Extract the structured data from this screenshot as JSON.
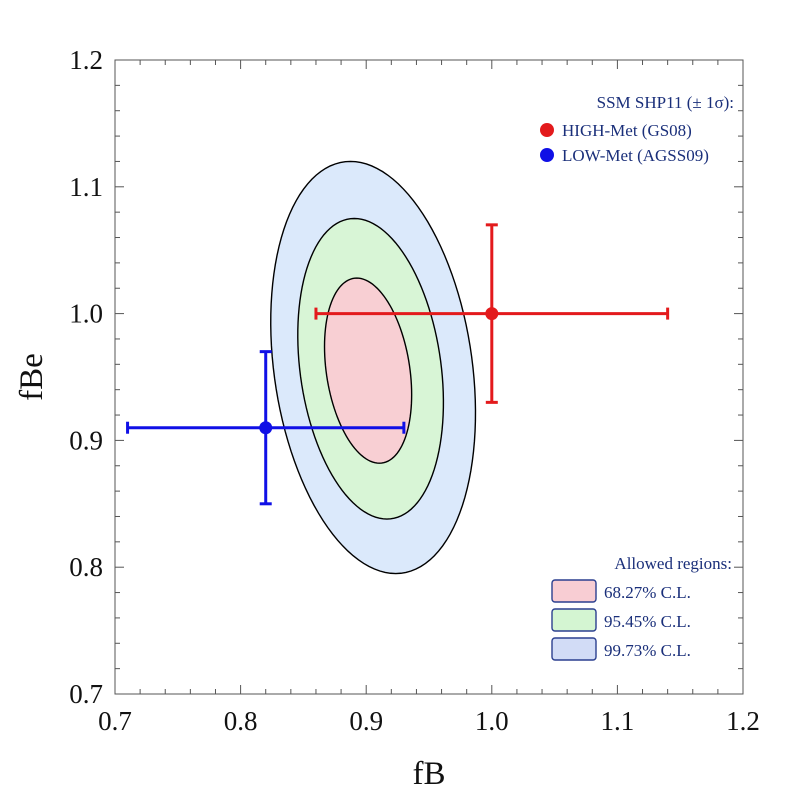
{
  "chart_data": {
    "type": "scatter",
    "xlabel": "fB",
    "ylabel": "fBe",
    "xlim": [
      0.7,
      1.2
    ],
    "ylim": [
      0.7,
      1.2
    ],
    "xticks": [
      "0.7",
      "0.8",
      "0.9",
      "1.0",
      "1.1",
      "1.2"
    ],
    "yticks": [
      "0.7",
      "0.8",
      "0.9",
      "1.0",
      "1.1",
      "1.2"
    ],
    "grid": false,
    "points": [
      {
        "name": "HIGH-Met (GS08)",
        "x": 1.0,
        "y": 1.0,
        "x_lo": 0.86,
        "x_hi": 1.14,
        "y_lo": 0.93,
        "y_hi": 1.07,
        "color": "#e31a1c"
      },
      {
        "name": "LOW-Met (AGSS09)",
        "x": 0.82,
        "y": 0.91,
        "x_lo": 0.71,
        "x_hi": 0.93,
        "y_lo": 0.85,
        "y_hi": 0.97,
        "color": "#1010e6"
      }
    ],
    "regions": [
      {
        "name": "99.73% C.L.",
        "x_min": 0.826,
        "x_max": 0.985,
        "y_min": 0.795,
        "y_max": 1.12,
        "fill": "#dbe9fb",
        "tilt": 0.018
      },
      {
        "name": "95.45% C.L.",
        "x_min": 0.847,
        "x_max": 0.96,
        "y_min": 0.838,
        "y_max": 1.075,
        "fill": "#d8f5d6",
        "tilt": 0.013
      },
      {
        "name": "68.27% C.L.",
        "x_min": 0.868,
        "x_max": 0.935,
        "y_min": 0.882,
        "y_max": 1.028,
        "fill": "#f8cfd3",
        "tilt": 0.009
      }
    ],
    "legend_points": {
      "title": "SSM SHP11 (± 1σ):",
      "placement": "top-right",
      "entries": [
        {
          "label": "HIGH-Met (GS08)",
          "color": "#e31a1c"
        },
        {
          "label": "LOW-Met (AGSS09)",
          "color": "#1010e6"
        }
      ]
    },
    "legend_regions": {
      "title": "Allowed regions:",
      "placement": "bottom-right",
      "entries": [
        {
          "label": "68.27% C.L.",
          "fill": "#f8cdd3"
        },
        {
          "label": "95.45% C.L.",
          "fill": "#d4f5d2"
        },
        {
          "label": "99.73% C.L.",
          "fill": "#d2dcf6"
        }
      ]
    }
  }
}
